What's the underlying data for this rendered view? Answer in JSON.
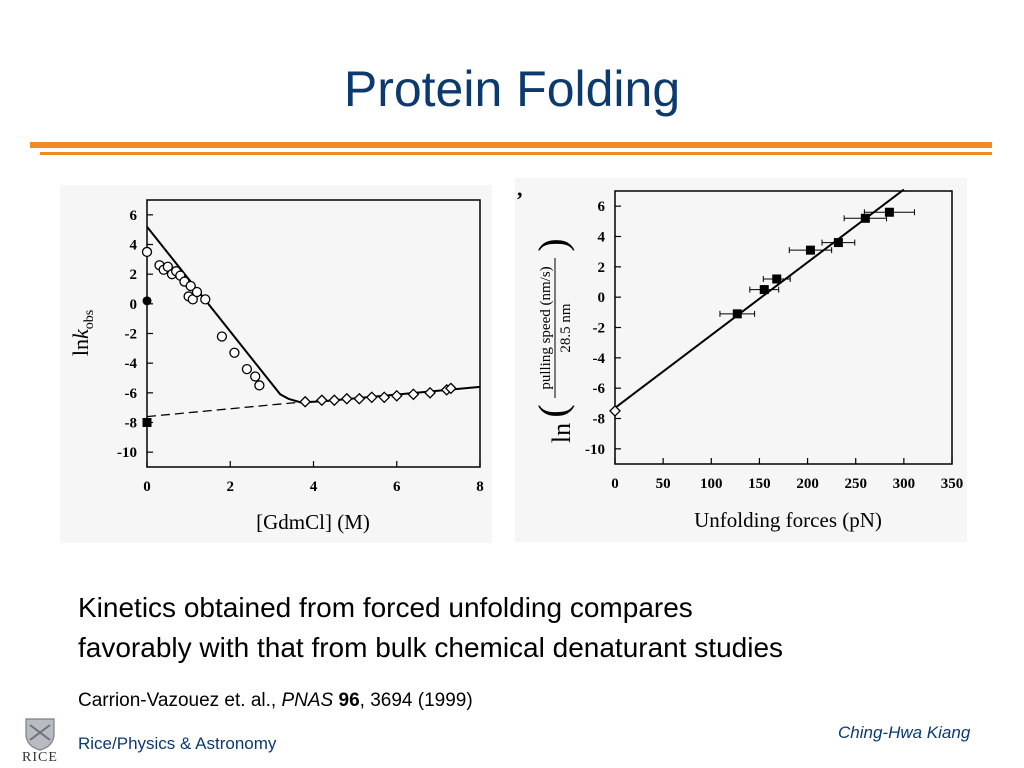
{
  "slide": {
    "title": "Protein Folding",
    "caption_line1": "Kinetics obtained from forced unfolding compares",
    "caption_line2": "favorably with that from bulk chemical denaturant studies",
    "citation_authors": "Carrion-Vazouez et. al., ",
    "citation_journal": "PNAS",
    "citation_volume": "96",
    "citation_rest": ", 3694 (1999)",
    "author": "Ching-Hwa Kiang",
    "department": "Rice/Physics & Astronomy",
    "logo_text": "RICE",
    "colors": {
      "title": "#0d3a6e",
      "rule": "#f08a24"
    }
  },
  "chart_data": [
    {
      "type": "scatter",
      "xlabel": "[GdmCl] (M)",
      "ylabel_main": "ln",
      "ylabel_italic": "k",
      "ylabel_sub": "obs",
      "xlim": [
        0,
        8
      ],
      "ylim": [
        -11,
        7
      ],
      "xticks": [
        0,
        2,
        4,
        6,
        8
      ],
      "yticks": [
        6,
        4,
        2,
        0,
        -2,
        -4,
        -6,
        -8,
        -10
      ],
      "series": [
        {
          "marker": "open-circle",
          "points": [
            [
              0.0,
              3.5
            ],
            [
              0.3,
              2.6
            ],
            [
              0.4,
              2.3
            ],
            [
              0.5,
              2.5
            ],
            [
              0.6,
              2.0
            ],
            [
              0.7,
              2.2
            ],
            [
              0.8,
              1.9
            ],
            [
              0.9,
              1.5
            ],
            [
              1.0,
              0.5
            ],
            [
              1.05,
              1.2
            ],
            [
              1.1,
              0.3
            ],
            [
              1.2,
              0.8
            ],
            [
              1.4,
              0.3
            ],
            [
              1.8,
              -2.2
            ],
            [
              2.1,
              -3.3
            ],
            [
              2.4,
              -4.4
            ],
            [
              2.6,
              -4.9
            ],
            [
              2.7,
              -5.5
            ]
          ]
        },
        {
          "marker": "filled-circle",
          "points": [
            [
              0.0,
              0.2
            ]
          ]
        },
        {
          "marker": "filled-square",
          "points": [
            [
              0.0,
              -8.0
            ]
          ]
        },
        {
          "marker": "open-diamond",
          "points": [
            [
              3.8,
              -6.6
            ],
            [
              4.2,
              -6.5
            ],
            [
              4.5,
              -6.5
            ],
            [
              4.8,
              -6.4
            ],
            [
              5.1,
              -6.4
            ],
            [
              5.4,
              -6.3
            ],
            [
              5.7,
              -6.3
            ],
            [
              6.0,
              -6.2
            ],
            [
              6.4,
              -6.1
            ],
            [
              6.8,
              -6.0
            ],
            [
              7.2,
              -5.8
            ],
            [
              7.3,
              -5.7
            ]
          ]
        }
      ],
      "fit_solid": [
        [
          0.0,
          5.2
        ],
        [
          3.2,
          -6.1
        ],
        [
          3.4,
          -6.4
        ],
        [
          3.7,
          -6.65
        ],
        [
          4.3,
          -6.55
        ],
        [
          8.0,
          -5.6
        ]
      ],
      "fit_dashed": [
        [
          0.0,
          -7.6
        ],
        [
          3.8,
          -6.6
        ]
      ]
    },
    {
      "type": "scatter",
      "xlabel": "Unfolding forces (pN)",
      "ylabel_numerator": "pulling speed (nm/s)",
      "ylabel_denominator": "28.5 nm",
      "ylabel_ln": "ln",
      "xlim": [
        0,
        350
      ],
      "ylim": [
        -11,
        7
      ],
      "xticks": [
        0,
        50,
        100,
        150,
        200,
        250,
        300,
        350
      ],
      "yticks": [
        6,
        4,
        2,
        0,
        -2,
        -4,
        -6,
        -8,
        -10
      ],
      "series": [
        {
          "marker": "filled-square",
          "points": [
            [
              127,
              -1.1,
              18
            ],
            [
              155,
              0.5,
              15
            ],
            [
              168,
              1.2,
              14
            ],
            [
              203,
              3.1,
              22
            ],
            [
              232,
              3.6,
              17
            ],
            [
              260,
              5.2,
              22
            ],
            [
              285,
              5.6,
              26
            ]
          ]
        },
        {
          "marker": "open-diamond",
          "points": [
            [
              0,
              -7.5,
              0
            ]
          ]
        }
      ],
      "fit_solid": [
        [
          0,
          -7.3
        ],
        [
          300,
          7.1
        ]
      ]
    }
  ]
}
